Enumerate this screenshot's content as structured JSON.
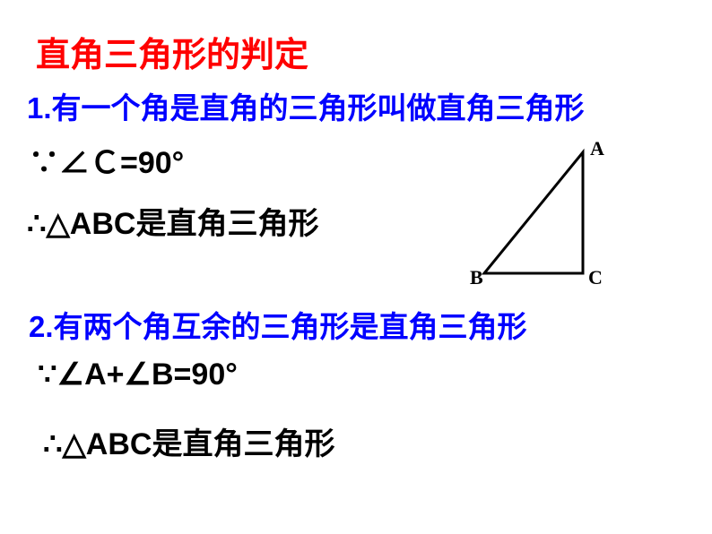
{
  "title": "直角三角形的判定",
  "point1": "1.有一个角是直角的三角形叫做直角三角形",
  "premise1": "∵∠Ｃ=90°",
  "conclusion1": "∴△ABC是直角三角形",
  "point2": "2.有两个角互余的三角形是直角三角形",
  "premise2": "∵∠A+∠B=90°",
  "conclusion2": "∴△ABC是直角三角形",
  "triangle": {
    "vertices": {
      "A": [
        120,
        15
      ],
      "B": [
        10,
        150
      ],
      "C": [
        120,
        150
      ]
    },
    "labels": {
      "A": "A",
      "B": "B",
      "C": "C"
    },
    "stroke_color": "#000000",
    "stroke_width": 3
  },
  "colors": {
    "title": "#ff0000",
    "point": "#0000ff",
    "text": "#000000",
    "background": "#ffffff"
  },
  "fontsizes": {
    "title": 38,
    "point": 33,
    "text": 34,
    "label": 22
  }
}
